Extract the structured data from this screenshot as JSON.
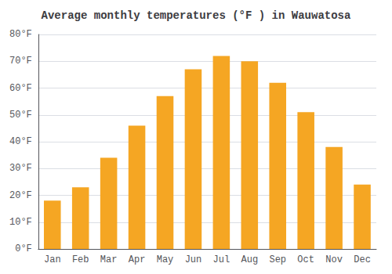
{
  "chart_data": {
    "type": "bar",
    "title": "Average monthly temperatures (°F ) in Wauwatosa",
    "categories": [
      "Jan",
      "Feb",
      "Mar",
      "Apr",
      "May",
      "Jun",
      "Jul",
      "Aug",
      "Sep",
      "Oct",
      "Nov",
      "Dec"
    ],
    "values": [
      18,
      23,
      34,
      46,
      57,
      67,
      72,
      70,
      62,
      51,
      38,
      24
    ],
    "color": "#F5A623",
    "ylim": [
      0,
      80
    ],
    "yticks": [
      {
        "value": 0,
        "label": "0°F"
      },
      {
        "value": 10,
        "label": "10°F"
      },
      {
        "value": 20,
        "label": "20°F"
      },
      {
        "value": 30,
        "label": "30°F"
      },
      {
        "value": 40,
        "label": "40°F"
      },
      {
        "value": 50,
        "label": "50°F"
      },
      {
        "value": 60,
        "label": "60°F"
      },
      {
        "value": 70,
        "label": "70°F"
      },
      {
        "value": 80,
        "label": "80°F"
      }
    ],
    "grid": true
  }
}
